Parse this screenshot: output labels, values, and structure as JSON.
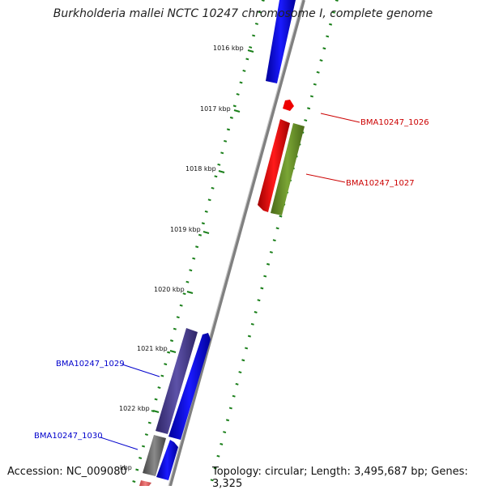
{
  "title": "Burkholderia mallei NCTC 10247 chromosome I, complete genome",
  "accession_text": "Accession: NC_009080",
  "summary_text": "Topology: circular; Length: 3,495,687 bp; Genes: 3,325",
  "ticks": [
    {
      "label": "1016 kbp"
    },
    {
      "label": "1017 kbp"
    },
    {
      "label": "1018 kbp"
    },
    {
      "label": "1019 kbp"
    },
    {
      "label": "1020 kbp"
    },
    {
      "label": "1021 kbp"
    },
    {
      "label": "1022 kbp"
    },
    {
      "label": "kbp"
    }
  ],
  "gene_labels": [
    {
      "text": "BMA10247_1026",
      "color": "#cc0000"
    },
    {
      "text": "BMA10247_1027",
      "color": "#cc0000"
    },
    {
      "text": "BMA10247_1029",
      "color": "#0000cc"
    },
    {
      "text": "BMA10247_1030",
      "color": "#0000cc"
    }
  ],
  "colors": {
    "forward_cds": "#0000ee",
    "reverse_cds": "#ee0000",
    "rna": "#6b8e23",
    "purple_cds": "#4b3f8f",
    "gray_feature": "#6e6e6e",
    "tick": "#1a7f1a",
    "backbone": "#888888"
  }
}
